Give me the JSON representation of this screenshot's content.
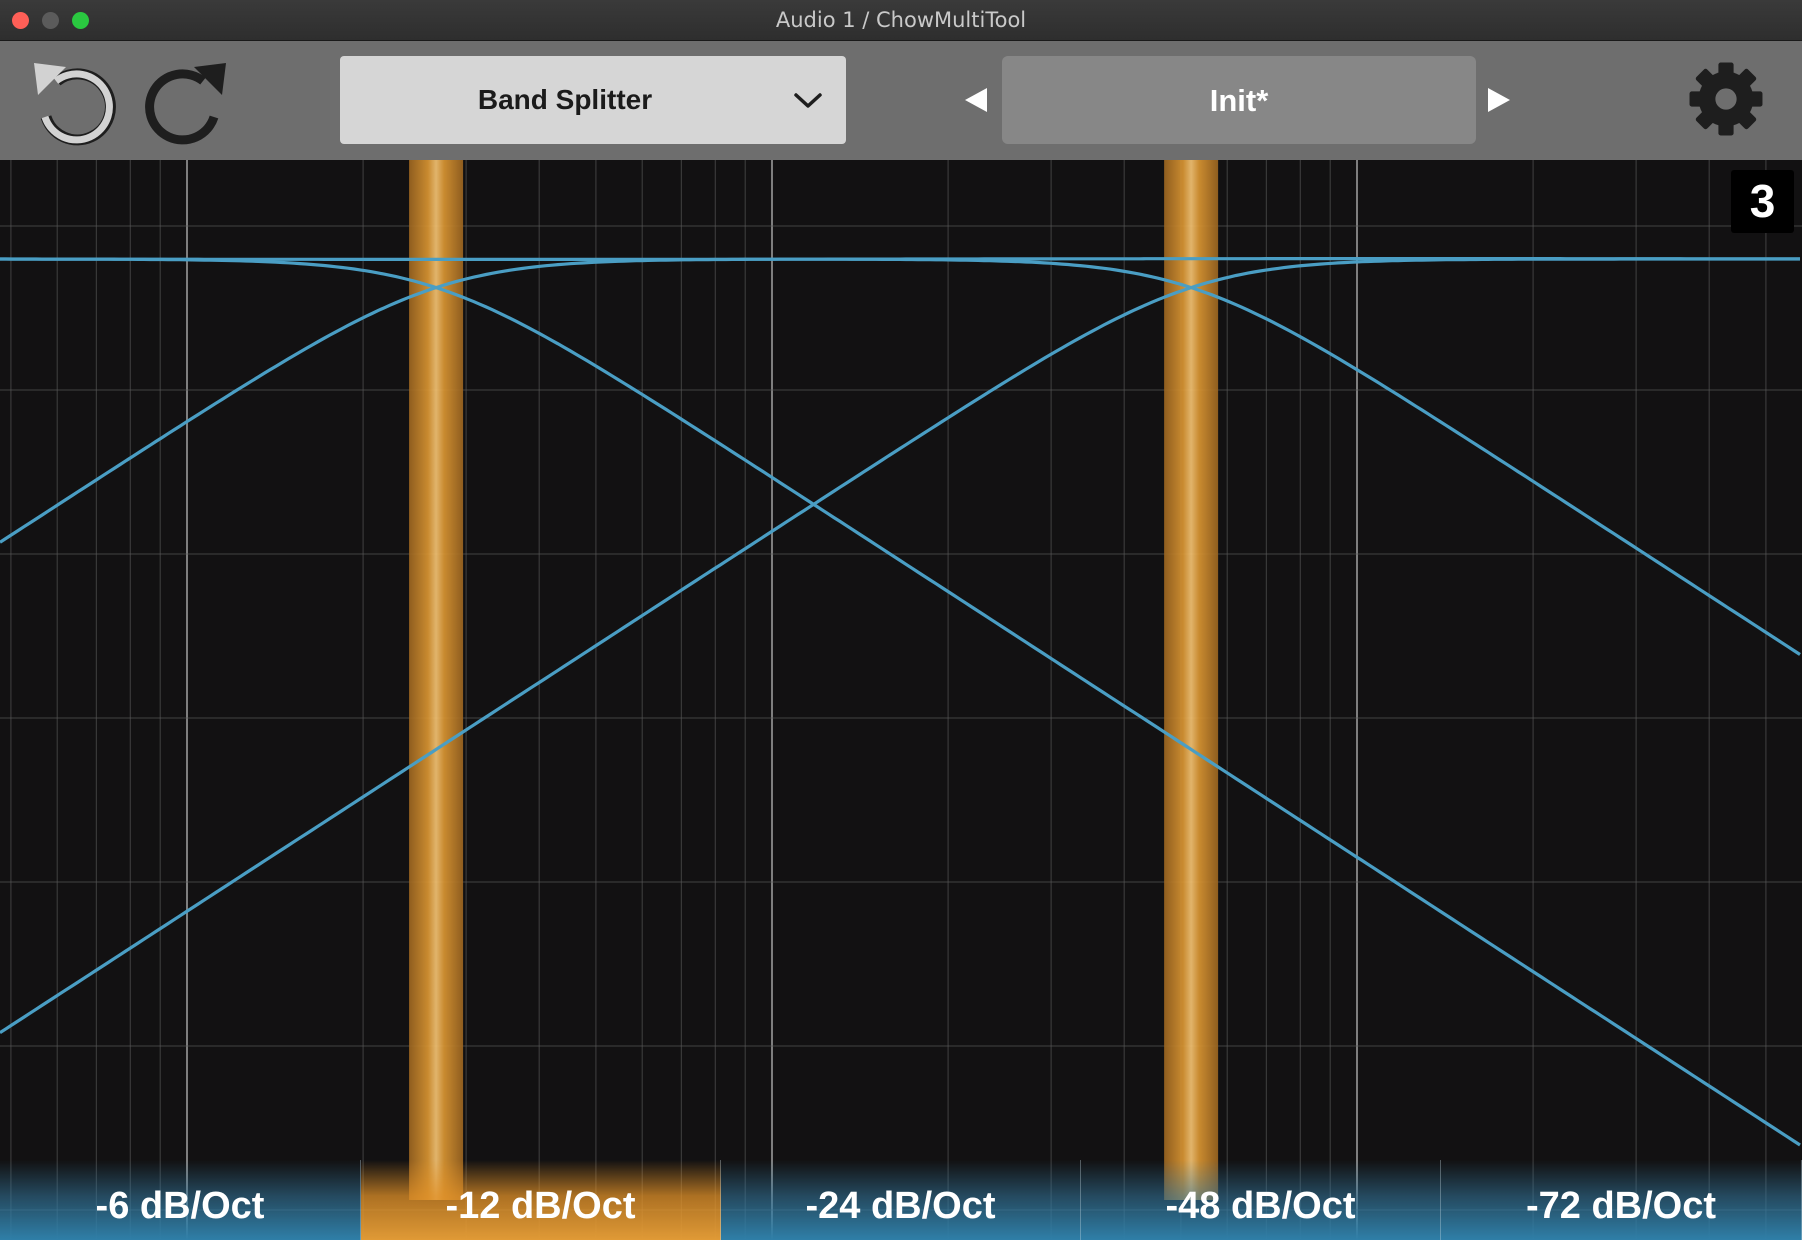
{
  "window": {
    "title": "Audio 1 / ChowMultiTool"
  },
  "toolbar": {
    "undo_icon": "undo-icon",
    "redo_icon": "redo-icon",
    "module": "Band Splitter",
    "preset": "Init*",
    "settings_icon": "gear-icon"
  },
  "plot": {
    "band_count": "3",
    "crossovers": [
      0.242,
      0.661
    ],
    "colors": {
      "background": "#121112",
      "grid": "#5a5a5a",
      "curve": "#4a9ec4",
      "crossover": "#e09a36"
    }
  },
  "slopes": {
    "selected_index": 1,
    "items": [
      {
        "label": "-6 dB/Oct"
      },
      {
        "label": "-12 dB/Oct"
      },
      {
        "label": "-24 dB/Oct"
      },
      {
        "label": "-48 dB/Oct"
      },
      {
        "label": "-72 dB/Oct"
      }
    ]
  }
}
